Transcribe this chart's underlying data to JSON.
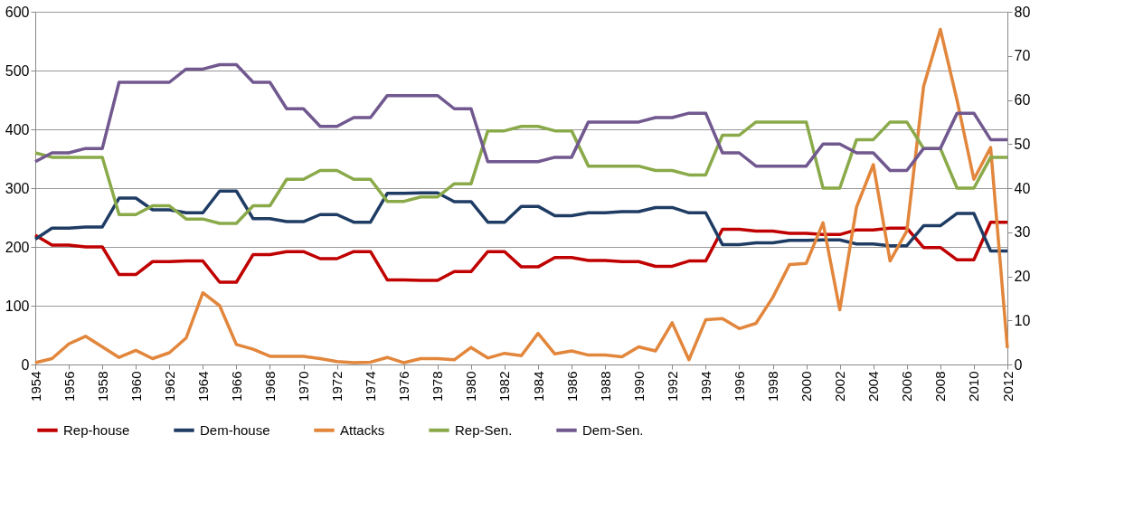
{
  "chart_data": {
    "type": "line",
    "x": [
      1954,
      1955,
      1956,
      1957,
      1958,
      1959,
      1960,
      1961,
      1962,
      1963,
      1964,
      1965,
      1966,
      1967,
      1968,
      1969,
      1970,
      1971,
      1972,
      1973,
      1974,
      1975,
      1976,
      1977,
      1978,
      1979,
      1980,
      1981,
      1982,
      1983,
      1984,
      1985,
      1986,
      1987,
      1988,
      1989,
      1990,
      1991,
      1992,
      1993,
      1994,
      1995,
      1996,
      1997,
      1998,
      1999,
      2000,
      2001,
      2002,
      2003,
      2004,
      2005,
      2006,
      2007,
      2008,
      2009,
      2010,
      2011,
      2012
    ],
    "xlim": [
      1954,
      2012
    ],
    "xticks": [
      1954,
      1956,
      1958,
      1960,
      1962,
      1964,
      1966,
      1968,
      1970,
      1972,
      1974,
      1976,
      1978,
      1980,
      1982,
      1984,
      1986,
      1988,
      1990,
      1992,
      1994,
      1996,
      1998,
      2000,
      2002,
      2004,
      2006,
      2008,
      2010,
      2012
    ],
    "ylim": [
      0,
      600
    ],
    "yticks": [
      0,
      100,
      200,
      300,
      400,
      500,
      600
    ],
    "y2lim": [
      0,
      80
    ],
    "y2ticks": [
      0,
      10,
      20,
      30,
      40,
      50,
      60,
      70,
      80
    ],
    "grid": "y",
    "legend": "bottom",
    "marker": "none",
    "line_style": "solid",
    "series": [
      {
        "name": "Rep-house",
        "color": "#c00000",
        "values": [
          220,
          203,
          203,
          200,
          200,
          153,
          153,
          175,
          175,
          176,
          176,
          140,
          140,
          187,
          187,
          192,
          192,
          180,
          180,
          192,
          192,
          144,
          144,
          143,
          143,
          158,
          158,
          192,
          192,
          166,
          166,
          182,
          182,
          177,
          177,
          175,
          175,
          167,
          167,
          176,
          176,
          230,
          230,
          227,
          227,
          223,
          223,
          221,
          221,
          229,
          229,
          232,
          232,
          199,
          199,
          178,
          178,
          242,
          242
        ]
      },
      {
        "name": "Dem-house",
        "color": "#1f3c64",
        "values": [
          213,
          232,
          232,
          234,
          234,
          283,
          283,
          263,
          263,
          258,
          258,
          295,
          295,
          248,
          248,
          243,
          243,
          255,
          255,
          242,
          242,
          291,
          291,
          292,
          292,
          277,
          277,
          242,
          242,
          269,
          269,
          253,
          253,
          258,
          258,
          260,
          260,
          267,
          267,
          258,
          258,
          204,
          204,
          207,
          207,
          211,
          211,
          212,
          212,
          205,
          205,
          202,
          202,
          236,
          236,
          257,
          257,
          193,
          193
        ]
      },
      {
        "name": "Attacks",
        "color": "#e2863c",
        "values": [
          3,
          10,
          35,
          48,
          30,
          12,
          24,
          10,
          20,
          45,
          122,
          100,
          34,
          26,
          14,
          14,
          14,
          10,
          5,
          3,
          4,
          12,
          3,
          10,
          10,
          8,
          29,
          11,
          19,
          15,
          53,
          18,
          23,
          16,
          16,
          13,
          30,
          23,
          71,
          8,
          76,
          78,
          61,
          70,
          114,
          170,
          172,
          241,
          93,
          268,
          340,
          176,
          227,
          473,
          570,
          449,
          315,
          369,
          28
        ]
      },
      {
        "name": "Rep-Sen.",
        "color": "#8aaa4a",
        "axis": "y2",
        "values": [
          48,
          47,
          47,
          47,
          47,
          34,
          34,
          36,
          36,
          33,
          33,
          32,
          32,
          36,
          36,
          42,
          42,
          44,
          44,
          42,
          42,
          37,
          37,
          38,
          38,
          41,
          41,
          53,
          53,
          54,
          54,
          53,
          53,
          45,
          45,
          45,
          45,
          44,
          44,
          43,
          43,
          52,
          52,
          55,
          55,
          55,
          55,
          40,
          40,
          51,
          51,
          55,
          55,
          49,
          49,
          40,
          40,
          47,
          47
        ]
      },
      {
        "name": "Dem-Sen.",
        "color": "#71588f",
        "axis": "y2",
        "values": [
          46,
          48,
          48,
          49,
          49,
          64,
          64,
          64,
          64,
          67,
          67,
          68,
          68,
          64,
          64,
          58,
          58,
          54,
          54,
          56,
          56,
          61,
          61,
          61,
          61,
          58,
          58,
          46,
          46,
          46,
          46,
          47,
          47,
          55,
          55,
          55,
          55,
          56,
          56,
          57,
          57,
          48,
          48,
          45,
          45,
          45,
          45,
          50,
          50,
          48,
          48,
          44,
          44,
          49,
          49,
          57,
          57,
          51,
          51
        ]
      }
    ]
  }
}
